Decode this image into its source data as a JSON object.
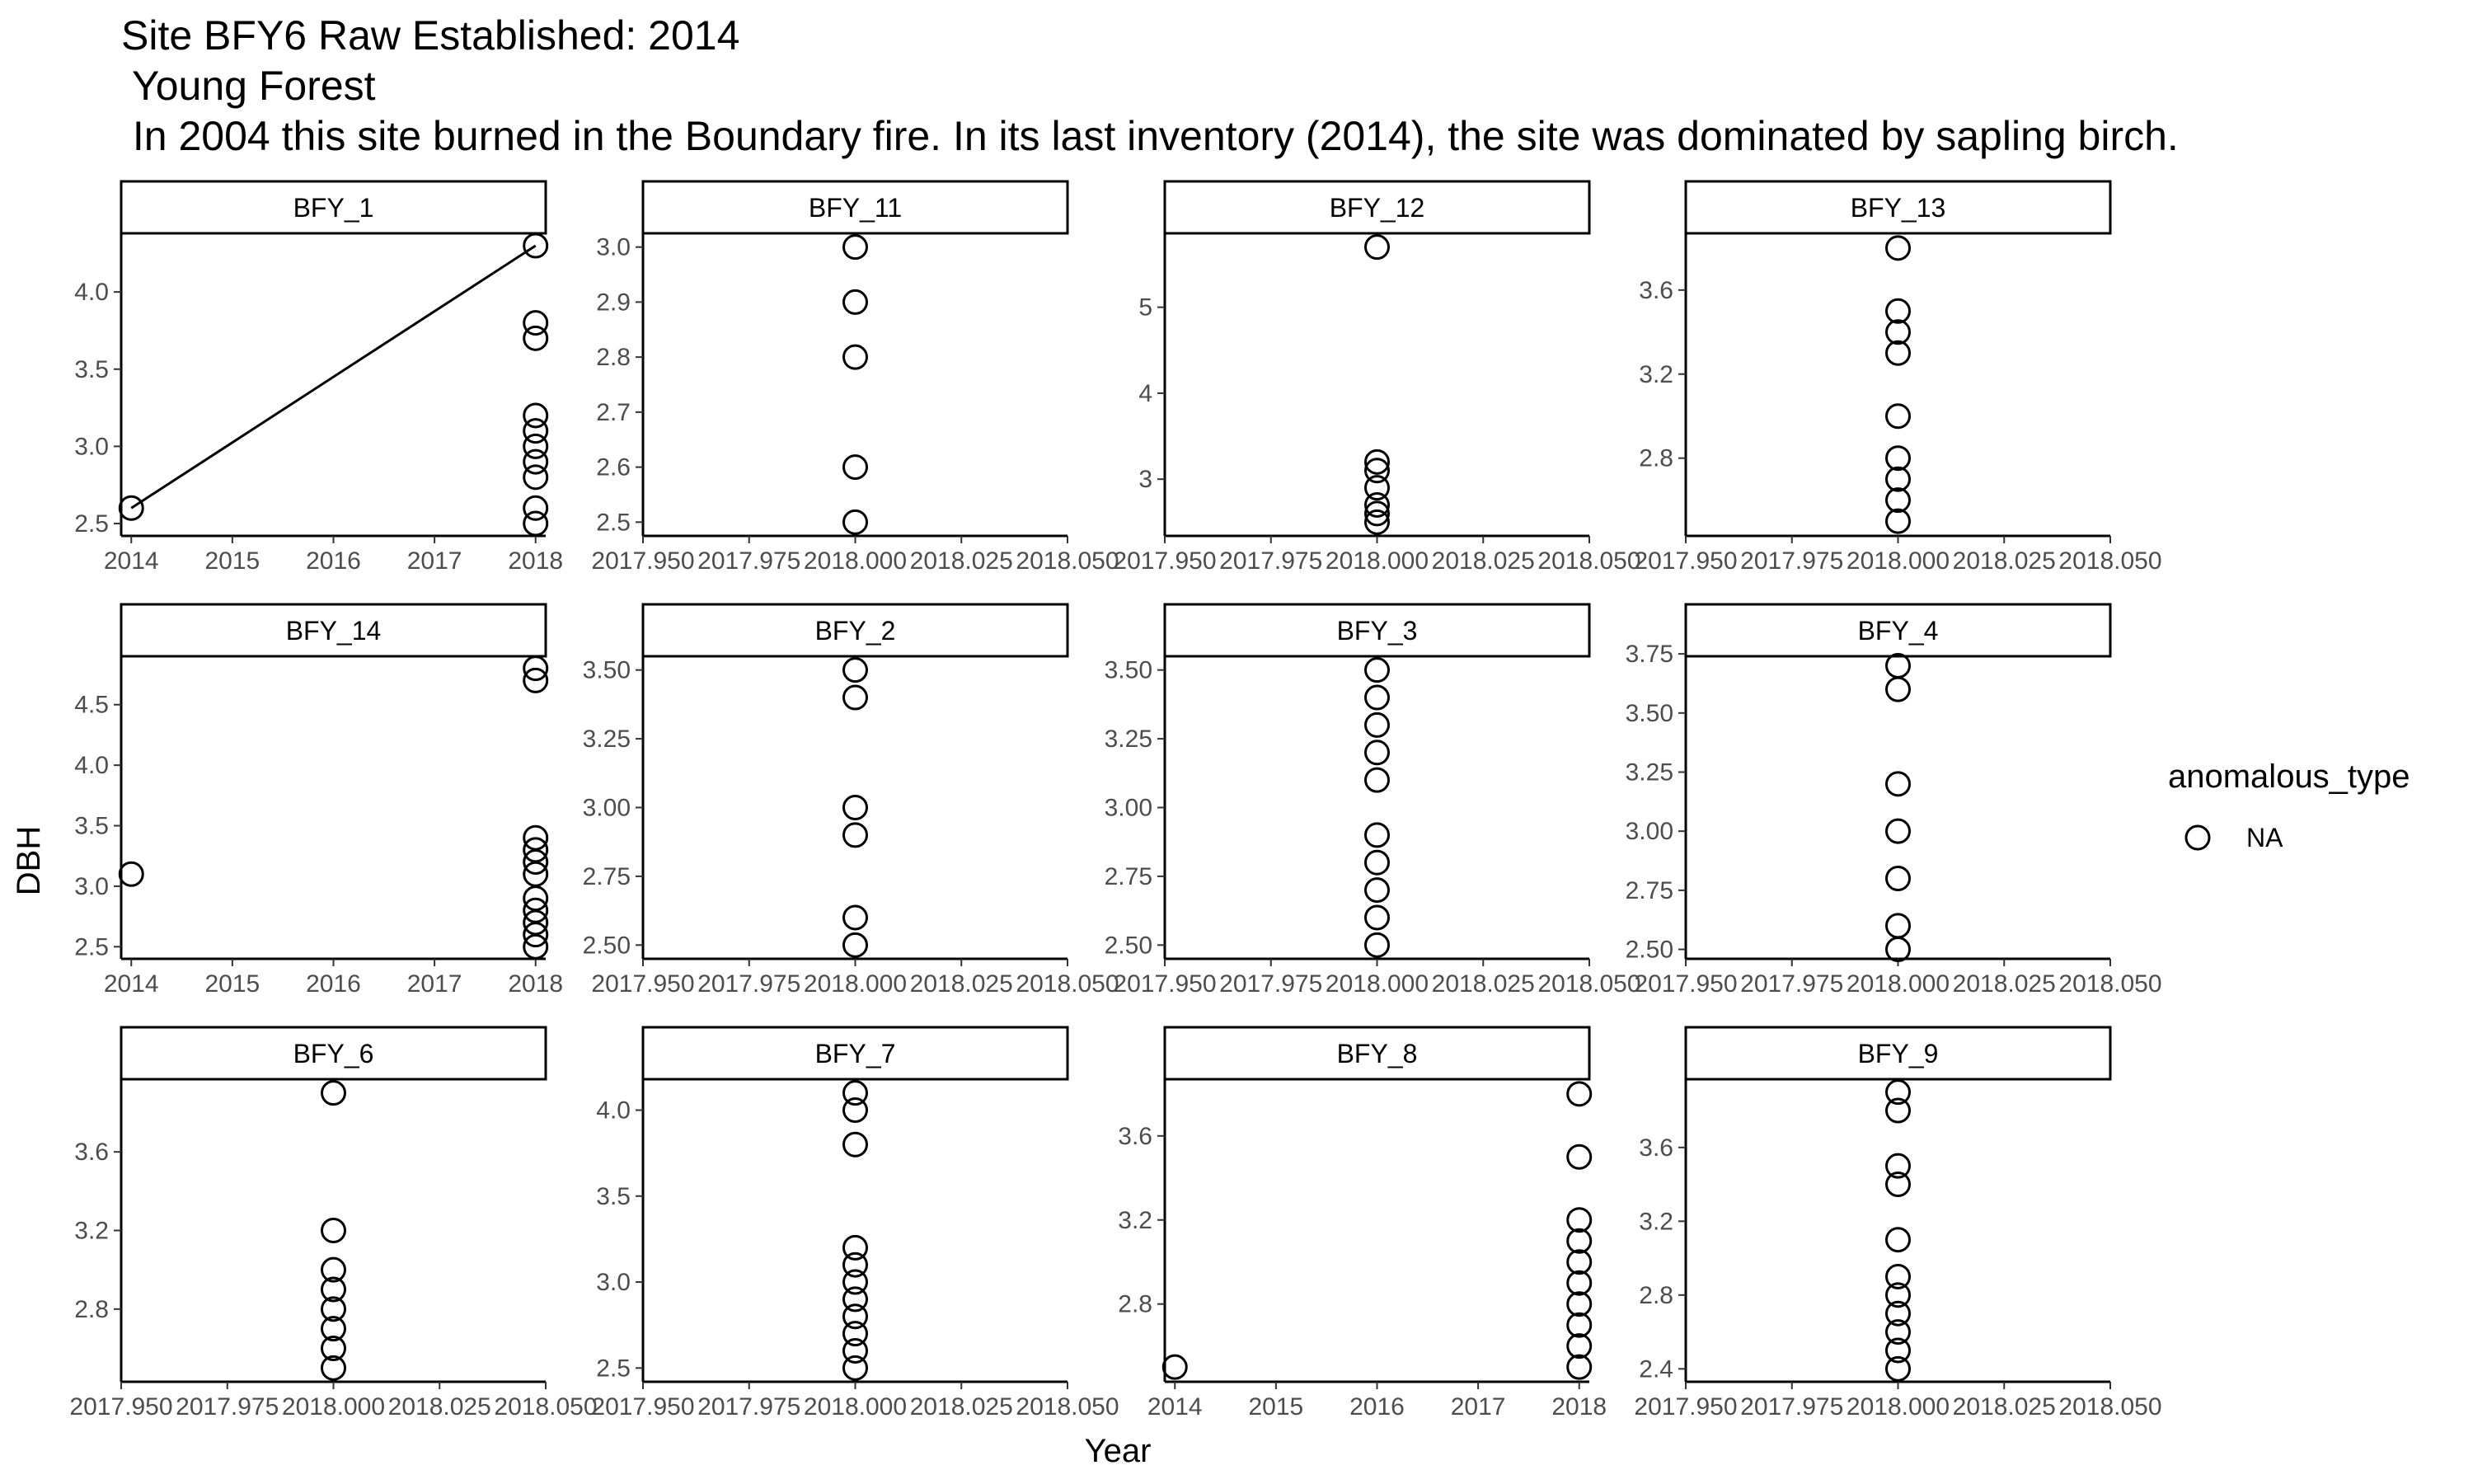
{
  "titles": [
    "Site BFY6 Raw Established: 2014",
    " Young Forest",
    " In 2004 this site burned in the Boundary fire. In its last inventory (2014), the site was dominated by sapling birch."
  ],
  "xlabel": "Year",
  "ylabel": "DBH",
  "legend": {
    "title": "anomalous_type",
    "label": "NA"
  },
  "chart_data": {
    "type": "scatter",
    "facet_layout": {
      "rows": 3,
      "cols": 4,
      "scales": "free"
    },
    "panels": [
      {
        "name": "BFY_1",
        "xlim": [
          2013.9,
          2018.1
        ],
        "xticks": [
          2014,
          2015,
          2016,
          2017,
          2018
        ],
        "xtick_labels": [
          "2014",
          "2015",
          "2016",
          "2017",
          "2018"
        ],
        "ylim": [
          2.42,
          4.38
        ],
        "yticks": [
          2.5,
          3.0,
          3.5,
          4.0
        ],
        "ytick_labels": [
          "2.5",
          "3.0",
          "3.5",
          "4.0"
        ],
        "points": [
          [
            2014,
            2.6
          ],
          [
            2018,
            4.3
          ],
          [
            2018,
            3.8
          ],
          [
            2018,
            3.7
          ],
          [
            2018,
            3.2
          ],
          [
            2018,
            3.1
          ],
          [
            2018,
            3.0
          ],
          [
            2018,
            2.9
          ],
          [
            2018,
            2.8
          ],
          [
            2018,
            2.6
          ],
          [
            2018,
            2.5
          ]
        ],
        "line": [
          [
            2014,
            2.6
          ],
          [
            2018,
            4.3
          ]
        ]
      },
      {
        "name": "BFY_11",
        "xlim": [
          2017.95,
          2018.05
        ],
        "xticks": [
          2017.95,
          2017.975,
          2018.0,
          2018.025,
          2018.05
        ],
        "xtick_labels": [
          "2017.950",
          "2017.975",
          "2018.000",
          "2018.025",
          "2018.050"
        ],
        "ylim": [
          2.475,
          3.025
        ],
        "yticks": [
          2.5,
          2.6,
          2.7,
          2.8,
          2.9,
          3.0
        ],
        "ytick_labels": [
          "2.5",
          "2.6",
          "2.7",
          "2.8",
          "2.9",
          "3.0"
        ],
        "points": [
          [
            2018,
            3.0
          ],
          [
            2018,
            2.9
          ],
          [
            2018,
            2.8
          ],
          [
            2018,
            2.6
          ],
          [
            2018,
            2.5
          ]
        ]
      },
      {
        "name": "BFY_12",
        "xlim": [
          2017.95,
          2018.05
        ],
        "xticks": [
          2017.95,
          2017.975,
          2018.0,
          2018.025,
          2018.05
        ],
        "xtick_labels": [
          "2017.950",
          "2017.975",
          "2018.000",
          "2018.025",
          "2018.050"
        ],
        "ylim": [
          2.34,
          5.86
        ],
        "yticks": [
          3,
          4,
          5
        ],
        "ytick_labels": [
          "3",
          "4",
          "5"
        ],
        "points": [
          [
            2018,
            5.7
          ],
          [
            2018,
            3.2
          ],
          [
            2018,
            3.1
          ],
          [
            2018,
            2.9
          ],
          [
            2018,
            2.7
          ],
          [
            2018,
            2.6
          ],
          [
            2018,
            2.5
          ]
        ]
      },
      {
        "name": "BFY_13",
        "xlim": [
          2017.95,
          2018.05
        ],
        "xticks": [
          2017.95,
          2017.975,
          2018.0,
          2018.025,
          2018.05
        ],
        "xtick_labels": [
          "2017.950",
          "2017.975",
          "2018.000",
          "2018.025",
          "2018.050"
        ],
        "ylim": [
          2.43,
          3.87
        ],
        "yticks": [
          2.8,
          3.2,
          3.6
        ],
        "ytick_labels": [
          "2.8",
          "3.2",
          "3.6"
        ],
        "points": [
          [
            2018,
            3.8
          ],
          [
            2018,
            3.5
          ],
          [
            2018,
            3.4
          ],
          [
            2018,
            3.3
          ],
          [
            2018,
            3.0
          ],
          [
            2018,
            2.8
          ],
          [
            2018,
            2.7
          ],
          [
            2018,
            2.6
          ],
          [
            2018,
            2.5
          ]
        ]
      },
      {
        "name": "BFY_14",
        "xlim": [
          2013.9,
          2018.1
        ],
        "xticks": [
          2014,
          2015,
          2016,
          2017,
          2018
        ],
        "xtick_labels": [
          "2014",
          "2015",
          "2016",
          "2017",
          "2018"
        ],
        "ylim": [
          2.4,
          4.9
        ],
        "yticks": [
          2.5,
          3.0,
          3.5,
          4.0,
          4.5
        ],
        "ytick_labels": [
          "2.5",
          "3.0",
          "3.5",
          "4.0",
          "4.5"
        ],
        "points": [
          [
            2014,
            3.1
          ],
          [
            2018,
            4.8
          ],
          [
            2018,
            4.7
          ],
          [
            2018,
            3.4
          ],
          [
            2018,
            3.3
          ],
          [
            2018,
            3.2
          ],
          [
            2018,
            3.1
          ],
          [
            2018,
            2.9
          ],
          [
            2018,
            2.8
          ],
          [
            2018,
            2.7
          ],
          [
            2018,
            2.6
          ],
          [
            2018,
            2.5
          ]
        ]
      },
      {
        "name": "BFY_2",
        "xlim": [
          2017.95,
          2018.05
        ],
        "xticks": [
          2017.95,
          2017.975,
          2018.0,
          2018.025,
          2018.05
        ],
        "xtick_labels": [
          "2017.950",
          "2017.975",
          "2018.000",
          "2018.025",
          "2018.050"
        ],
        "ylim": [
          2.45,
          3.55
        ],
        "yticks": [
          2.5,
          2.75,
          3.0,
          3.25,
          3.5
        ],
        "ytick_labels": [
          "2.50",
          "2.75",
          "3.00",
          "3.25",
          "3.50"
        ],
        "points": [
          [
            2018,
            3.5
          ],
          [
            2018,
            3.4
          ],
          [
            2018,
            3.0
          ],
          [
            2018,
            2.9
          ],
          [
            2018,
            2.6
          ],
          [
            2018,
            2.5
          ]
        ]
      },
      {
        "name": "BFY_3",
        "xlim": [
          2017.95,
          2018.05
        ],
        "xticks": [
          2017.95,
          2017.975,
          2018.0,
          2018.025,
          2018.05
        ],
        "xtick_labels": [
          "2017.950",
          "2017.975",
          "2018.000",
          "2018.025",
          "2018.050"
        ],
        "ylim": [
          2.45,
          3.55
        ],
        "yticks": [
          2.5,
          2.75,
          3.0,
          3.25,
          3.5
        ],
        "ytick_labels": [
          "2.50",
          "2.75",
          "3.00",
          "3.25",
          "3.50"
        ],
        "points": [
          [
            2018,
            3.5
          ],
          [
            2018,
            3.4
          ],
          [
            2018,
            3.3
          ],
          [
            2018,
            3.2
          ],
          [
            2018,
            3.1
          ],
          [
            2018,
            2.9
          ],
          [
            2018,
            2.8
          ],
          [
            2018,
            2.7
          ],
          [
            2018,
            2.6
          ],
          [
            2018,
            2.5
          ]
        ]
      },
      {
        "name": "BFY_4",
        "xlim": [
          2017.95,
          2018.05
        ],
        "xticks": [
          2017.95,
          2017.975,
          2018.0,
          2018.025,
          2018.05
        ],
        "xtick_labels": [
          "2017.950",
          "2017.975",
          "2018.000",
          "2018.025",
          "2018.050"
        ],
        "ylim": [
          2.46,
          3.74
        ],
        "yticks": [
          2.5,
          2.75,
          3.0,
          3.25,
          3.5,
          3.75
        ],
        "ytick_labels": [
          "2.50",
          "2.75",
          "3.00",
          "3.25",
          "3.50",
          "3.75"
        ],
        "points": [
          [
            2018,
            3.7
          ],
          [
            2018,
            3.6
          ],
          [
            2018,
            3.2
          ],
          [
            2018,
            3.0
          ],
          [
            2018,
            2.8
          ],
          [
            2018,
            2.6
          ],
          [
            2018,
            2.5
          ]
        ]
      },
      {
        "name": "BFY_6",
        "xlim": [
          2017.95,
          2018.05
        ],
        "xticks": [
          2017.95,
          2017.975,
          2018.0,
          2018.025,
          2018.05
        ],
        "xtick_labels": [
          "2017.950",
          "2017.975",
          "2018.000",
          "2018.025",
          "2018.050"
        ],
        "ylim": [
          2.43,
          3.97
        ],
        "yticks": [
          2.8,
          3.2,
          3.6
        ],
        "ytick_labels": [
          "2.8",
          "3.2",
          "3.6"
        ],
        "points": [
          [
            2018,
            3.9
          ],
          [
            2018,
            3.2
          ],
          [
            2018,
            3.0
          ],
          [
            2018,
            2.9
          ],
          [
            2018,
            2.8
          ],
          [
            2018,
            2.7
          ],
          [
            2018,
            2.6
          ],
          [
            2018,
            2.5
          ]
        ]
      },
      {
        "name": "BFY_7",
        "xlim": [
          2017.95,
          2018.05
        ],
        "xticks": [
          2017.95,
          2017.975,
          2018.0,
          2018.025,
          2018.05
        ],
        "xtick_labels": [
          "2017.950",
          "2017.975",
          "2018.000",
          "2018.025",
          "2018.050"
        ],
        "ylim": [
          2.42,
          4.18
        ],
        "yticks": [
          2.5,
          3.0,
          3.5,
          4.0
        ],
        "ytick_labels": [
          "2.5",
          "3.0",
          "3.5",
          "4.0"
        ],
        "points": [
          [
            2018,
            4.1
          ],
          [
            2018,
            4.0
          ],
          [
            2018,
            3.8
          ],
          [
            2018,
            3.2
          ],
          [
            2018,
            3.1
          ],
          [
            2018,
            3.0
          ],
          [
            2018,
            2.9
          ],
          [
            2018,
            2.8
          ],
          [
            2018,
            2.7
          ],
          [
            2018,
            2.6
          ],
          [
            2018,
            2.5
          ]
        ]
      },
      {
        "name": "BFY_8",
        "xlim": [
          2013.9,
          2018.1
        ],
        "xticks": [
          2014,
          2015,
          2016,
          2017,
          2018
        ],
        "xtick_labels": [
          "2014",
          "2015",
          "2016",
          "2017",
          "2018"
        ],
        "ylim": [
          2.43,
          3.87
        ],
        "yticks": [
          2.8,
          3.2,
          3.6
        ],
        "ytick_labels": [
          "2.8",
          "3.2",
          "3.6"
        ],
        "points": [
          [
            2014,
            2.5
          ],
          [
            2018,
            3.8
          ],
          [
            2018,
            3.5
          ],
          [
            2018,
            3.2
          ],
          [
            2018,
            3.1
          ],
          [
            2018,
            3.0
          ],
          [
            2018,
            2.9
          ],
          [
            2018,
            2.8
          ],
          [
            2018,
            2.7
          ],
          [
            2018,
            2.6
          ],
          [
            2018,
            2.5
          ]
        ]
      },
      {
        "name": "BFY_9",
        "xlim": [
          2017.95,
          2018.05
        ],
        "xticks": [
          2017.95,
          2017.975,
          2018.0,
          2018.025,
          2018.05
        ],
        "xtick_labels": [
          "2017.950",
          "2017.975",
          "2018.000",
          "2018.025",
          "2018.050"
        ],
        "ylim": [
          2.33,
          3.97
        ],
        "yticks": [
          2.4,
          2.8,
          3.2,
          3.6
        ],
        "ytick_labels": [
          "2.4",
          "2.8",
          "3.2",
          "3.6"
        ],
        "points": [
          [
            2018,
            3.9
          ],
          [
            2018,
            3.8
          ],
          [
            2018,
            3.5
          ],
          [
            2018,
            3.4
          ],
          [
            2018,
            3.1
          ],
          [
            2018,
            2.9
          ],
          [
            2018,
            2.8
          ],
          [
            2018,
            2.7
          ],
          [
            2018,
            2.6
          ],
          [
            2018,
            2.5
          ],
          [
            2018,
            2.4
          ]
        ]
      }
    ]
  }
}
